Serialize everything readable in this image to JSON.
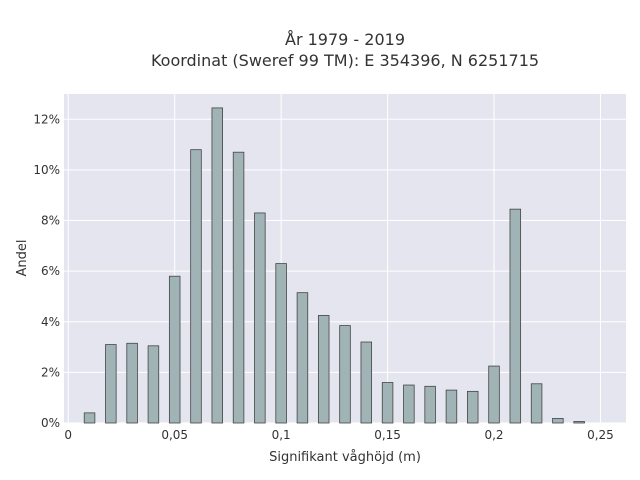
{
  "chart_data": {
    "type": "bar",
    "title": [
      "År 1979 - 2019",
      "Koordinat (Sweref 99 TM): E 354396, N 6251715"
    ],
    "xlabel": "Signifikant våghöjd (m)",
    "ylabel": "Andel",
    "xlim": [
      -0.002,
      0.262
    ],
    "ylim": [
      0,
      13
    ],
    "x_ticks": [
      0,
      0.05,
      0.1,
      0.15,
      0.2,
      0.25
    ],
    "x_tick_labels": [
      "0",
      "0,05",
      "0,1",
      "0,15",
      "0,2",
      "0,25"
    ],
    "y_ticks": [
      0,
      2,
      4,
      6,
      8,
      10,
      12
    ],
    "y_tick_labels": [
      "0%",
      "2%",
      "4%",
      "6%",
      "8%",
      "10%",
      "12%"
    ],
    "bar_width": 0.005,
    "x": [
      0.01,
      0.02,
      0.03,
      0.04,
      0.05,
      0.06,
      0.07,
      0.08,
      0.09,
      0.1,
      0.11,
      0.12,
      0.13,
      0.14,
      0.15,
      0.16,
      0.17,
      0.18,
      0.19,
      0.2,
      0.21,
      0.22,
      0.23,
      0.24
    ],
    "values": [
      0.4,
      3.1,
      3.15,
      3.05,
      5.8,
      10.8,
      12.45,
      10.7,
      8.3,
      6.3,
      5.15,
      4.25,
      3.85,
      3.2,
      1.6,
      1.5,
      1.45,
      1.3,
      1.25,
      2.25,
      8.45,
      1.55,
      0.18,
      0.06
    ],
    "grid": true,
    "colors": {
      "background": "#e5e5ef",
      "bar_fill": "#a0b4b5",
      "bar_stroke": "#444444"
    }
  }
}
